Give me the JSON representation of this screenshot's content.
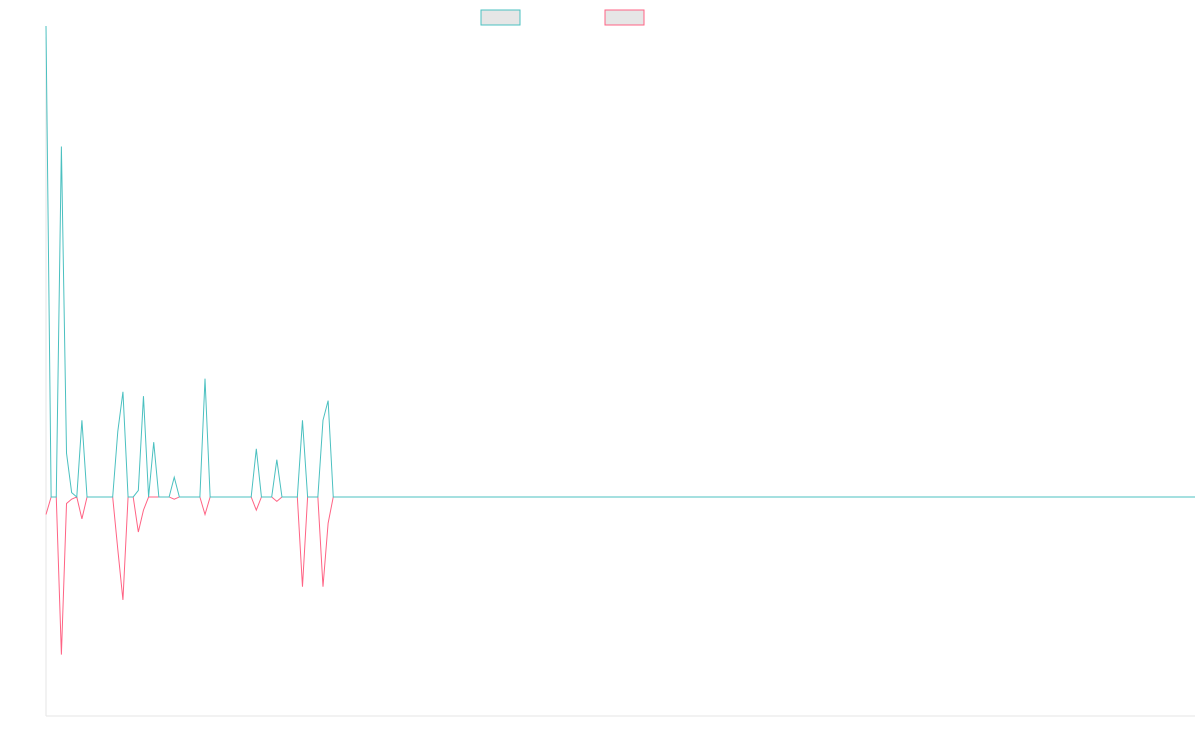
{
  "chart_data": {
    "type": "line",
    "title": "",
    "xlabel": "",
    "ylabel": "",
    "grid": false,
    "legend": "top-center",
    "ylim": [
      -1,
      2.1
    ],
    "x_count": 225,
    "series": [
      {
        "color": "#4bc0c0",
        "points": [
          [
            0,
            2.15
          ],
          [
            1,
            0
          ],
          [
            2,
            0
          ],
          [
            3,
            1.6
          ],
          [
            4,
            0.2
          ],
          [
            5,
            0.02
          ],
          [
            6,
            0
          ],
          [
            7,
            0.35
          ],
          [
            8,
            0
          ],
          [
            9,
            0
          ],
          [
            10,
            0
          ],
          [
            11,
            0
          ],
          [
            12,
            0
          ],
          [
            13,
            0
          ],
          [
            14,
            0.3
          ],
          [
            15,
            0.48
          ],
          [
            16,
            0
          ],
          [
            17,
            0
          ],
          [
            18,
            0.03
          ],
          [
            19,
            0.46
          ],
          [
            20,
            0
          ],
          [
            21,
            0.25
          ],
          [
            22,
            0
          ],
          [
            23,
            0
          ],
          [
            24,
            0
          ],
          [
            25,
            0.09
          ],
          [
            26,
            0
          ],
          [
            27,
            0
          ],
          [
            28,
            0
          ],
          [
            29,
            0
          ],
          [
            30,
            0
          ],
          [
            31,
            0.54
          ],
          [
            32,
            0
          ],
          [
            33,
            0
          ],
          [
            34,
            0
          ],
          [
            35,
            0
          ],
          [
            36,
            0
          ],
          [
            37,
            0
          ],
          [
            38,
            0
          ],
          [
            39,
            0
          ],
          [
            40,
            0
          ],
          [
            41,
            0.22
          ],
          [
            42,
            0
          ],
          [
            43,
            0
          ],
          [
            44,
            0
          ],
          [
            45,
            0.17
          ],
          [
            46,
            0
          ],
          [
            47,
            0
          ],
          [
            48,
            0
          ],
          [
            49,
            0
          ],
          [
            50,
            0.35
          ],
          [
            51,
            0
          ],
          [
            52,
            0
          ],
          [
            53,
            0
          ],
          [
            54,
            0.35
          ],
          [
            55,
            0.44
          ],
          [
            56,
            0
          ],
          [
            224,
            0
          ]
        ]
      },
      {
        "color": "#ff6384",
        "points": [
          [
            0,
            -0.08
          ],
          [
            1,
            0
          ],
          [
            2,
            0
          ],
          [
            3,
            -0.72
          ],
          [
            4,
            -0.03
          ],
          [
            5,
            -0.01
          ],
          [
            6,
            0
          ],
          [
            7,
            -0.1
          ],
          [
            8,
            0
          ],
          [
            9,
            0
          ],
          [
            10,
            0
          ],
          [
            11,
            0
          ],
          [
            12,
            0
          ],
          [
            13,
            0
          ],
          [
            14,
            -0.24
          ],
          [
            15,
            -0.47
          ],
          [
            16,
            0
          ],
          [
            17,
            0
          ],
          [
            18,
            -0.16
          ],
          [
            19,
            -0.06
          ],
          [
            20,
            0
          ],
          [
            21,
            0
          ],
          [
            22,
            0
          ],
          [
            23,
            0
          ],
          [
            24,
            0
          ],
          [
            25,
            -0.01
          ],
          [
            26,
            0
          ],
          [
            27,
            0
          ],
          [
            28,
            0
          ],
          [
            29,
            0
          ],
          [
            30,
            0
          ],
          [
            31,
            -0.08
          ],
          [
            32,
            0
          ],
          [
            33,
            0
          ],
          [
            34,
            0
          ],
          [
            35,
            0
          ],
          [
            36,
            0
          ],
          [
            37,
            0
          ],
          [
            38,
            0
          ],
          [
            39,
            0
          ],
          [
            40,
            0
          ],
          [
            41,
            -0.06
          ],
          [
            42,
            0
          ],
          [
            43,
            0
          ],
          [
            44,
            0
          ],
          [
            45,
            -0.02
          ],
          [
            46,
            0
          ],
          [
            47,
            0
          ],
          [
            48,
            0
          ],
          [
            49,
            0
          ],
          [
            50,
            -0.41
          ],
          [
            51,
            0
          ],
          [
            52,
            0
          ],
          [
            53,
            0
          ],
          [
            54,
            -0.41
          ],
          [
            55,
            -0.12
          ],
          [
            56,
            0
          ],
          [
            224,
            0
          ]
        ]
      }
    ]
  }
}
